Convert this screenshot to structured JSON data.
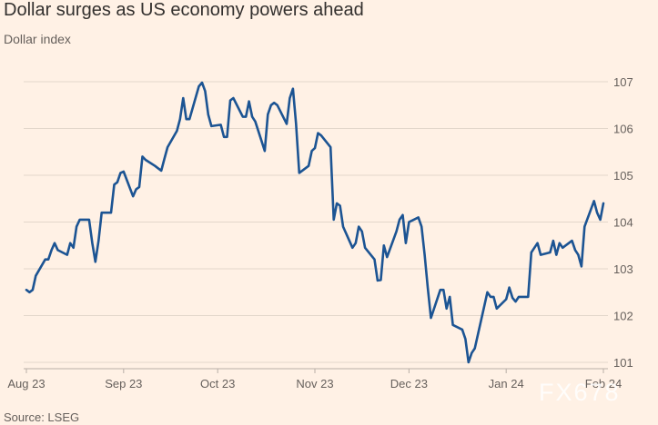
{
  "header": {
    "title": "Dollar surges as US economy powers ahead",
    "subtitle": "Dollar index"
  },
  "footer": {
    "source": "Source: LSEG",
    "watermark": "FX678"
  },
  "colors": {
    "background": "#fff1e5",
    "line": "#1c5493",
    "grid": "#e3d7cb",
    "text": "#66605c"
  },
  "chart_data": {
    "type": "line",
    "title": "Dollar surges as US economy powers ahead",
    "subtitle": "Dollar index",
    "xlabel": "",
    "ylabel": "",
    "ylim": [
      101,
      107
    ],
    "yticks": [
      101,
      102,
      103,
      104,
      105,
      106,
      107
    ],
    "y_axis_position": "right",
    "grid": "horizontal",
    "x_ticks": [
      {
        "label": "Aug 23",
        "date": "2023-08-01"
      },
      {
        "label": "Sep 23",
        "date": "2023-09-01"
      },
      {
        "label": "Oct 23",
        "date": "2023-10-01"
      },
      {
        "label": "Nov 23",
        "date": "2023-11-01"
      },
      {
        "label": "Dec 23",
        "date": "2023-12-01"
      },
      {
        "label": "Jan 24",
        "date": "2024-01-01"
      },
      {
        "label": "Feb 24",
        "date": "2024-02-01"
      }
    ],
    "series": [
      {
        "values": [
          [
            "2023-08-01",
            102.55
          ],
          [
            "2023-08-02",
            102.5
          ],
          [
            "2023-08-03",
            102.55
          ],
          [
            "2023-08-04",
            102.85
          ],
          [
            "2023-08-07",
            103.2
          ],
          [
            "2023-08-08",
            103.2
          ],
          [
            "2023-08-09",
            103.4
          ],
          [
            "2023-08-10",
            103.55
          ],
          [
            "2023-08-11",
            103.4
          ],
          [
            "2023-08-14",
            103.3
          ],
          [
            "2023-08-15",
            103.55
          ],
          [
            "2023-08-16",
            103.45
          ],
          [
            "2023-08-17",
            103.9
          ],
          [
            "2023-08-18",
            104.05
          ],
          [
            "2023-08-21",
            104.05
          ],
          [
            "2023-08-22",
            103.55
          ],
          [
            "2023-08-23",
            103.15
          ],
          [
            "2023-08-24",
            103.6
          ],
          [
            "2023-08-25",
            104.2
          ],
          [
            "2023-08-28",
            104.2
          ],
          [
            "2023-08-29",
            104.8
          ],
          [
            "2023-08-30",
            104.85
          ],
          [
            "2023-08-31",
            105.05
          ],
          [
            "2023-09-01",
            105.08
          ],
          [
            "2023-09-04",
            104.55
          ],
          [
            "2023-09-05",
            104.7
          ],
          [
            "2023-09-06",
            104.75
          ],
          [
            "2023-09-07",
            105.4
          ],
          [
            "2023-09-08",
            105.33
          ],
          [
            "2023-09-11",
            105.2
          ],
          [
            "2023-09-12",
            105.15
          ],
          [
            "2023-09-13",
            105.1
          ],
          [
            "2023-09-14",
            105.35
          ],
          [
            "2023-09-15",
            105.6
          ],
          [
            "2023-09-18",
            105.95
          ],
          [
            "2023-09-19",
            106.2
          ],
          [
            "2023-09-20",
            106.65
          ],
          [
            "2023-09-21",
            106.2
          ],
          [
            "2023-09-22",
            106.2
          ],
          [
            "2023-09-25",
            106.9
          ],
          [
            "2023-09-26",
            106.98
          ],
          [
            "2023-09-27",
            106.8
          ],
          [
            "2023-09-28",
            106.3
          ],
          [
            "2023-09-29",
            106.05
          ],
          [
            "2023-10-02",
            106.08
          ],
          [
            "2023-10-03",
            105.82
          ],
          [
            "2023-10-04",
            105.82
          ],
          [
            "2023-10-05",
            106.6
          ],
          [
            "2023-10-06",
            106.65
          ],
          [
            "2023-10-09",
            106.25
          ],
          [
            "2023-10-10",
            106.25
          ],
          [
            "2023-10-11",
            106.58
          ],
          [
            "2023-10-12",
            106.25
          ],
          [
            "2023-10-13",
            106.15
          ],
          [
            "2023-10-16",
            105.52
          ],
          [
            "2023-10-17",
            106.3
          ],
          [
            "2023-10-18",
            106.5
          ],
          [
            "2023-10-19",
            106.55
          ],
          [
            "2023-10-20",
            106.5
          ],
          [
            "2023-10-23",
            106.1
          ],
          [
            "2023-10-24",
            106.65
          ],
          [
            "2023-10-25",
            106.85
          ],
          [
            "2023-10-26",
            106.1
          ],
          [
            "2023-10-27",
            105.05
          ],
          [
            "2023-10-30",
            105.2
          ],
          [
            "2023-10-31",
            105.52
          ],
          [
            "2023-11-01",
            105.58
          ],
          [
            "2023-11-02",
            105.9
          ],
          [
            "2023-11-03",
            105.85
          ],
          [
            "2023-11-06",
            105.6
          ],
          [
            "2023-11-07",
            104.05
          ],
          [
            "2023-11-08",
            104.4
          ],
          [
            "2023-11-09",
            104.35
          ],
          [
            "2023-11-10",
            103.9
          ],
          [
            "2023-11-13",
            103.45
          ],
          [
            "2023-11-14",
            103.55
          ],
          [
            "2023-11-15",
            103.9
          ],
          [
            "2023-11-16",
            103.8
          ],
          [
            "2023-11-17",
            103.45
          ],
          [
            "2023-11-20",
            103.2
          ],
          [
            "2023-11-21",
            102.75
          ],
          [
            "2023-11-22",
            102.76
          ],
          [
            "2023-11-23",
            103.5
          ],
          [
            "2023-11-24",
            103.25
          ],
          [
            "2023-11-27",
            103.8
          ],
          [
            "2023-11-28",
            104.05
          ],
          [
            "2023-11-29",
            104.15
          ],
          [
            "2023-11-30",
            103.55
          ],
          [
            "2023-12-01",
            104.0
          ],
          [
            "2023-12-04",
            104.1
          ],
          [
            "2023-12-05",
            103.9
          ],
          [
            "2023-12-06",
            103.3
          ],
          [
            "2023-12-07",
            102.6
          ],
          [
            "2023-12-08",
            101.95
          ],
          [
            "2023-12-11",
            102.55
          ],
          [
            "2023-12-12",
            102.55
          ],
          [
            "2023-12-13",
            102.15
          ],
          [
            "2023-12-14",
            102.4
          ],
          [
            "2023-12-15",
            101.8
          ],
          [
            "2023-12-18",
            101.7
          ],
          [
            "2023-12-19",
            101.5
          ],
          [
            "2023-12-20",
            101.0
          ],
          [
            "2023-12-21",
            101.2
          ],
          [
            "2023-12-22",
            101.3
          ],
          [
            "2023-12-25",
            102.2
          ],
          [
            "2023-12-26",
            102.5
          ],
          [
            "2023-12-27",
            102.4
          ],
          [
            "2023-12-28",
            102.4
          ],
          [
            "2023-12-29",
            102.15
          ],
          [
            "2024-01-01",
            102.35
          ],
          [
            "2024-01-02",
            102.6
          ],
          [
            "2024-01-03",
            102.38
          ],
          [
            "2024-01-04",
            102.3
          ],
          [
            "2024-01-05",
            102.4
          ],
          [
            "2024-01-08",
            102.4
          ],
          [
            "2024-01-09",
            103.35
          ],
          [
            "2024-01-10",
            103.45
          ],
          [
            "2024-01-11",
            103.55
          ],
          [
            "2024-01-12",
            103.3
          ],
          [
            "2024-01-15",
            103.35
          ],
          [
            "2024-01-16",
            103.6
          ],
          [
            "2024-01-17",
            103.3
          ],
          [
            "2024-01-18",
            103.55
          ],
          [
            "2024-01-19",
            103.45
          ],
          [
            "2024-01-22",
            103.6
          ],
          [
            "2024-01-23",
            103.4
          ],
          [
            "2024-01-24",
            103.3
          ],
          [
            "2024-01-25",
            103.05
          ],
          [
            "2024-01-26",
            103.9
          ],
          [
            "2024-01-29",
            104.45
          ],
          [
            "2024-01-30",
            104.2
          ],
          [
            "2024-01-31",
            104.05
          ],
          [
            "2024-02-01",
            104.4
          ]
        ]
      }
    ]
  }
}
